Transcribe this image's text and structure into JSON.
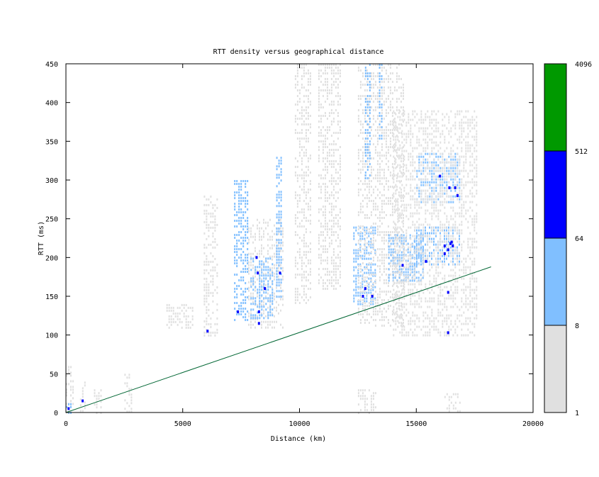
{
  "chart_data": {
    "type": "heatmap",
    "title": "RTT density versus geographical distance",
    "xlabel": "Distance (km)",
    "ylabel": "RTT (ms)",
    "xlim": [
      0,
      20000
    ],
    "ylim": [
      0,
      450
    ],
    "x_ticks": [
      0,
      5000,
      10000,
      15000,
      20000
    ],
    "y_ticks": [
      0,
      50,
      100,
      150,
      200,
      250,
      300,
      350,
      400,
      450
    ],
    "colorbar": {
      "scale": "log",
      "ticks": [
        1,
        8,
        64,
        512,
        4096
      ],
      "bands": [
        {
          "from": 1,
          "to": 8,
          "color": "#e0e0e0"
        },
        {
          "from": 8,
          "to": 64,
          "color": "#80bfff"
        },
        {
          "from": 64,
          "to": 512,
          "color": "#0000ff"
        },
        {
          "from": 512,
          "to": 4096,
          "color": "#009900"
        }
      ]
    },
    "reference_line": {
      "color": "#006633",
      "points": [
        [
          0,
          0
        ],
        [
          18200,
          188
        ]
      ]
    },
    "density_regions": [
      {
        "x": [
          0,
          300
        ],
        "y": [
          0,
          60
        ],
        "level": 1
      },
      {
        "x": [
          0,
          250
        ],
        "y": [
          0,
          12
        ],
        "level": 2
      },
      {
        "x": [
          600,
          800
        ],
        "y": [
          0,
          40
        ],
        "level": 1
      },
      {
        "x": [
          1200,
          1500
        ],
        "y": [
          0,
          30
        ],
        "level": 1
      },
      {
        "x": [
          2500,
          2800
        ],
        "y": [
          0,
          50
        ],
        "level": 1
      },
      {
        "x": [
          4300,
          5400
        ],
        "y": [
          110,
          140
        ],
        "level": 1
      },
      {
        "x": [
          5900,
          6500
        ],
        "y": [
          100,
          280
        ],
        "level": 1
      },
      {
        "x": [
          7200,
          7800
        ],
        "y": [
          120,
          300
        ],
        "level": 2
      },
      {
        "x": [
          7800,
          9300
        ],
        "y": [
          110,
          250
        ],
        "level": 1
      },
      {
        "x": [
          7900,
          8900
        ],
        "y": [
          120,
          200
        ],
        "level": 2
      },
      {
        "x": [
          9000,
          9200
        ],
        "y": [
          150,
          330
        ],
        "level": 2
      },
      {
        "x": [
          9800,
          10500
        ],
        "y": [
          140,
          450
        ],
        "level": 1
      },
      {
        "x": [
          10800,
          11800
        ],
        "y": [
          160,
          450
        ],
        "level": 1
      },
      {
        "x": [
          12300,
          13300
        ],
        "y": [
          140,
          240
        ],
        "level": 2
      },
      {
        "x": [
          12500,
          14500
        ],
        "y": [
          110,
          450
        ],
        "level": 1
      },
      {
        "x": [
          12800,
          13000
        ],
        "y": [
          300,
          450
        ],
        "level": 2
      },
      {
        "x": [
          13400,
          13500
        ],
        "y": [
          350,
          450
        ],
        "level": 2
      },
      {
        "x": [
          13800,
          15300
        ],
        "y": [
          170,
          230
        ],
        "level": 2
      },
      {
        "x": [
          14900,
          16900
        ],
        "y": [
          190,
          240
        ],
        "level": 2
      },
      {
        "x": [
          15000,
          16900
        ],
        "y": [
          270,
          335
        ],
        "level": 2
      },
      {
        "x": [
          14000,
          17600
        ],
        "y": [
          100,
          390
        ],
        "level": 1
      },
      {
        "x": [
          12500,
          13300
        ],
        "y": [
          0,
          30
        ],
        "level": 1
      },
      {
        "x": [
          16200,
          16900
        ],
        "y": [
          0,
          25
        ],
        "level": 1
      }
    ],
    "dense_cells": [
      [
        100,
        5
      ],
      [
        700,
        15
      ],
      [
        6050,
        105
      ],
      [
        7350,
        130
      ],
      [
        8150,
        200
      ],
      [
        8200,
        180
      ],
      [
        8250,
        130
      ],
      [
        8250,
        115
      ],
      [
        8500,
        160
      ],
      [
        9150,
        180
      ],
      [
        12700,
        150
      ],
      [
        12800,
        160
      ],
      [
        13100,
        150
      ],
      [
        14400,
        190
      ],
      [
        15400,
        195
      ],
      [
        16000,
        305
      ],
      [
        16200,
        215
      ],
      [
        16350,
        210
      ],
      [
        16450,
        218
      ],
      [
        16500,
        220
      ],
      [
        16550,
        215
      ],
      [
        16400,
        290
      ],
      [
        16650,
        290
      ],
      [
        16750,
        280
      ],
      [
        16350,
        103
      ],
      [
        16350,
        155
      ],
      [
        16200,
        205
      ]
    ]
  }
}
